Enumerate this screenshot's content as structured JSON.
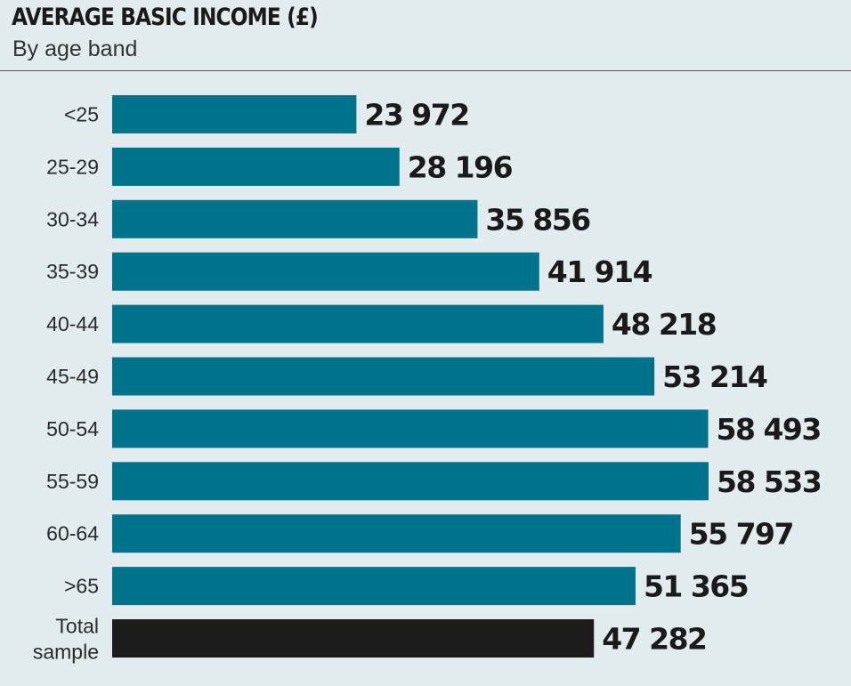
{
  "header": {
    "title": "AVERAGE BASIC INCOME (£)",
    "subtitle": "By age band"
  },
  "chart_data": {
    "type": "bar",
    "orientation": "horizontal",
    "title": "AVERAGE BASIC INCOME (£)",
    "subtitle": "By age band",
    "categories": [
      "<25",
      "25-29",
      "30-34",
      "35-39",
      "40-44",
      "45-49",
      "50-54",
      "55-59",
      "60-64",
      ">65",
      "Total sample"
    ],
    "values": [
      23972,
      28196,
      35856,
      41914,
      48218,
      53214,
      58493,
      58533,
      55797,
      51365,
      47282
    ],
    "value_labels": [
      "23 972",
      "28 196",
      "35 856",
      "41 914",
      "48 218",
      "53 214",
      "58 493",
      "58 533",
      "55 797",
      "51 365",
      "47 282"
    ],
    "bar_colors": [
      "#00738c",
      "#00738c",
      "#00738c",
      "#00738c",
      "#00738c",
      "#00738c",
      "#00738c",
      "#00738c",
      "#00738c",
      "#00738c",
      "#1c1c1c"
    ],
    "xlim": [
      0,
      58533
    ],
    "grid": false,
    "legend": "none"
  }
}
